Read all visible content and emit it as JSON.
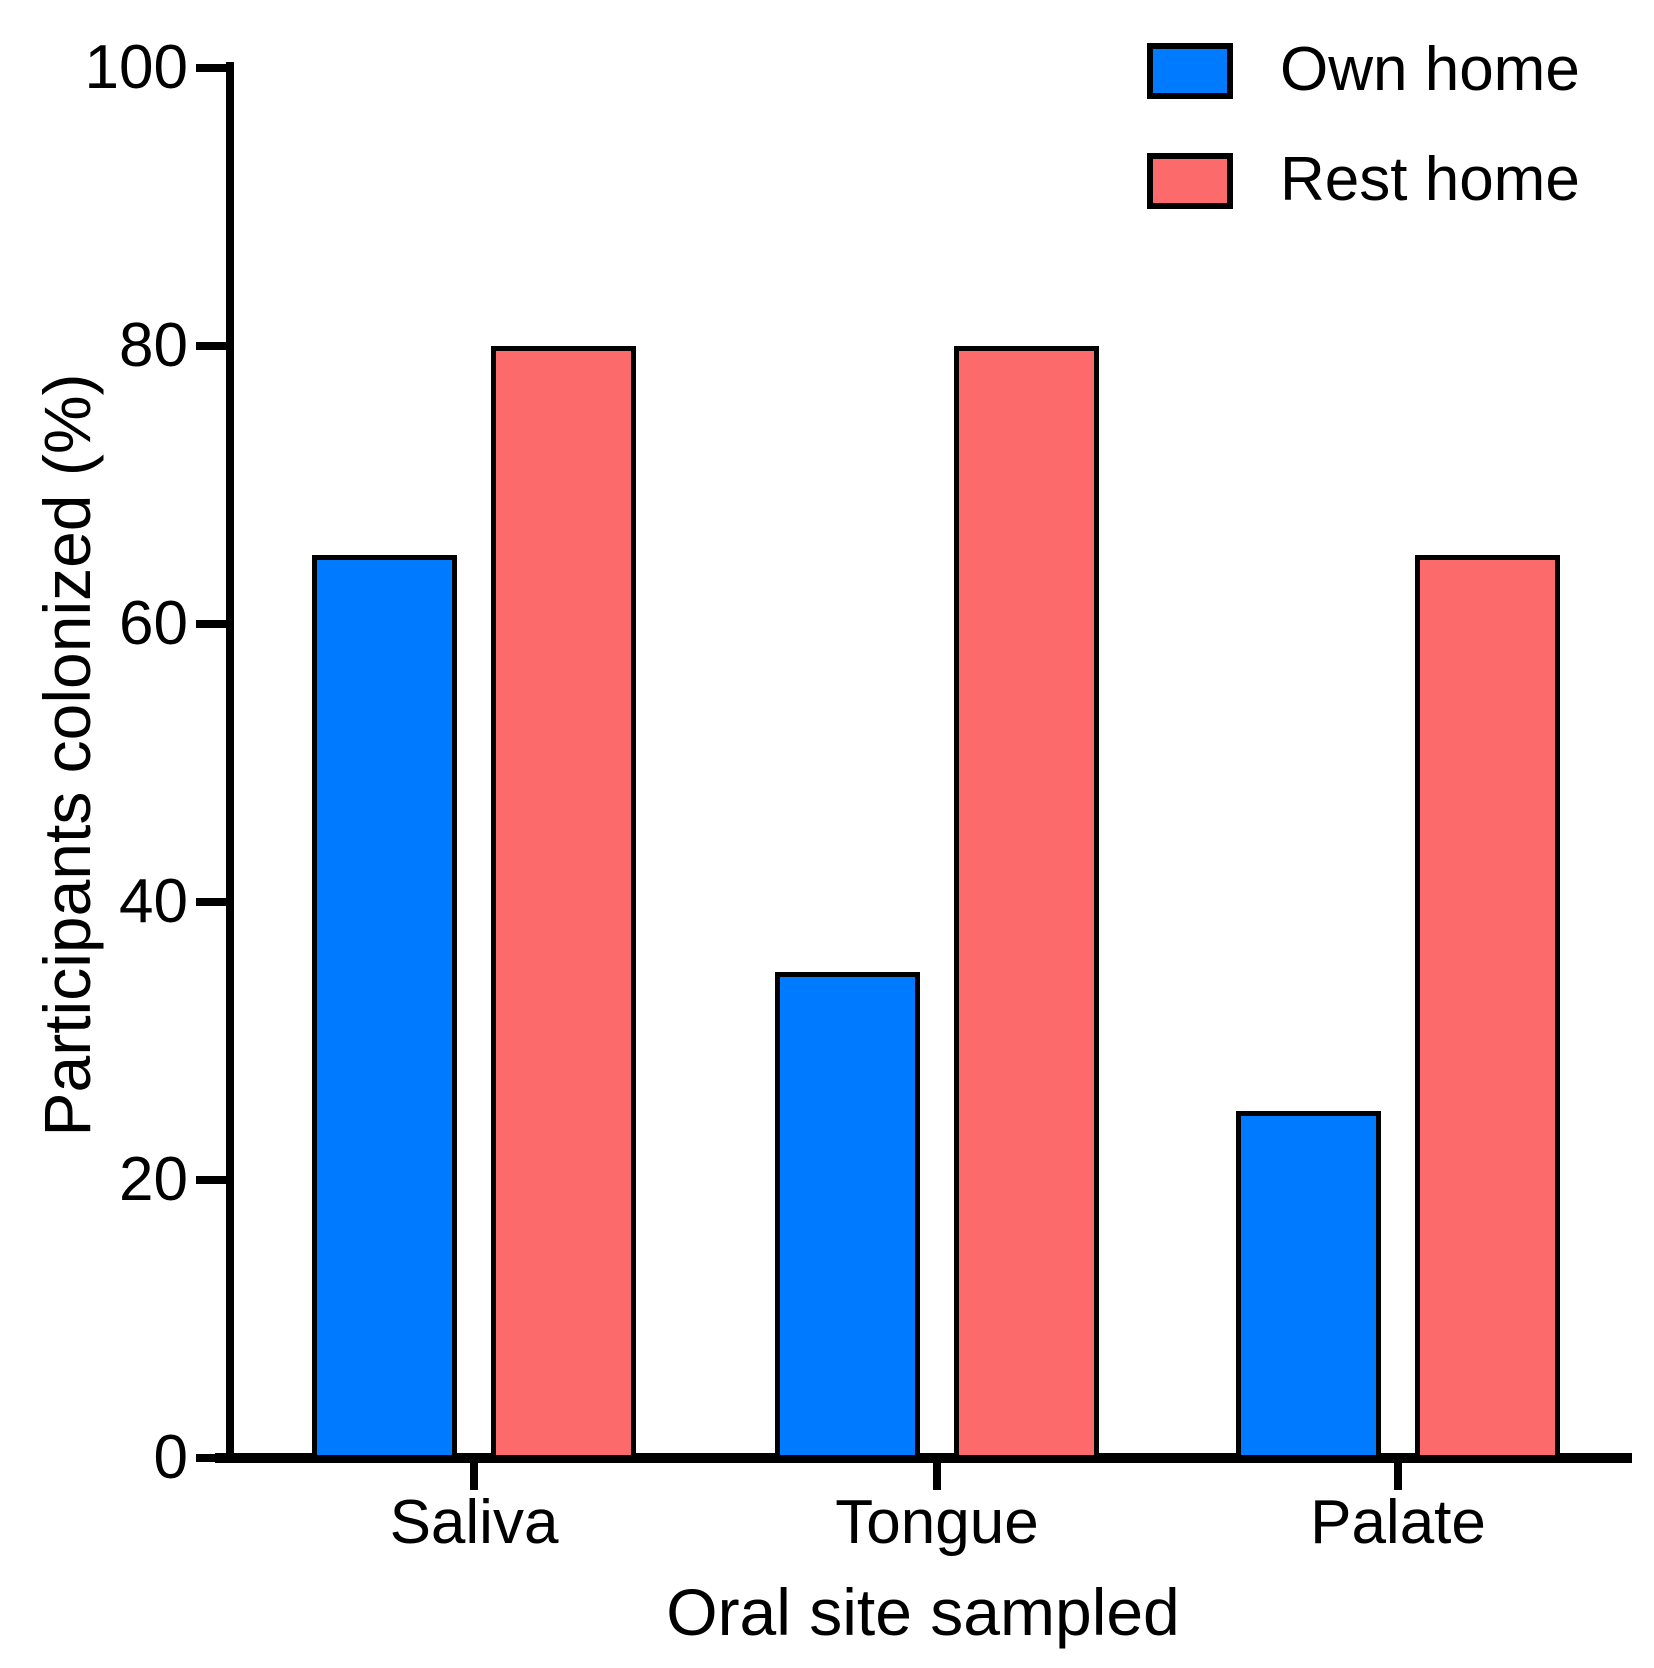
{
  "chart_data": {
    "type": "bar",
    "title": "",
    "categories": [
      "Saliva",
      "Tongue",
      "Palate"
    ],
    "series": [
      {
        "name": "Own home",
        "color": "#007BFF",
        "values": [
          65,
          35,
          25
        ]
      },
      {
        "name": "Rest home",
        "color": "#FC6A6B",
        "values": [
          80,
          80,
          65
        ]
      }
    ],
    "xlabel": "Oral site sampled",
    "ylabel": "Participants colonized (%)",
    "ylim": [
      0,
      100
    ],
    "yticks": [
      0,
      20,
      40,
      60,
      80,
      100
    ],
    "grid": false,
    "legend_position": "top-right",
    "axis_color": "#000000",
    "bar_outline_color": "#000000",
    "background_color": "#FFFFFF"
  }
}
